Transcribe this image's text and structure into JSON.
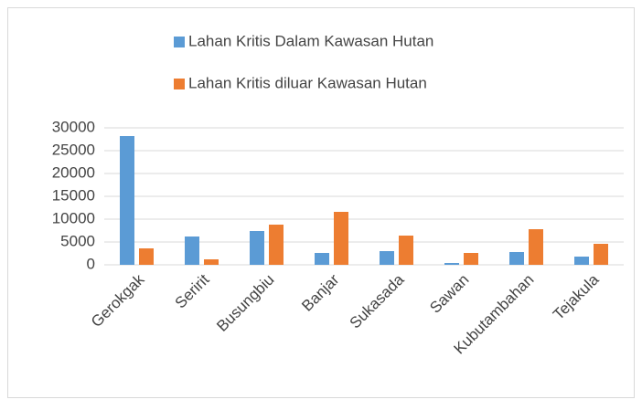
{
  "chart_data": {
    "type": "bar",
    "categories": [
      "Gerokgak",
      "Seririt",
      "Busungbiu",
      "Banjar",
      "Sukasada",
      "Sawan",
      "Kubutambahan",
      "Tejakula"
    ],
    "series": [
      {
        "name": "Lahan Kritis Dalam Kawasan Hutan",
        "color": "#5b9bd5",
        "values": [
          28200,
          6200,
          7400,
          2600,
          3000,
          400,
          2800,
          1800
        ]
      },
      {
        "name": "Lahan Kritis diluar Kawasan Hutan",
        "color": "#ed7d31",
        "values": [
          3600,
          1200,
          8800,
          11600,
          6400,
          2600,
          7800,
          4600
        ]
      }
    ],
    "ylim": [
      0,
      30000
    ],
    "yticks": [
      0,
      5000,
      10000,
      15000,
      20000,
      25000,
      30000
    ],
    "grid": true
  }
}
